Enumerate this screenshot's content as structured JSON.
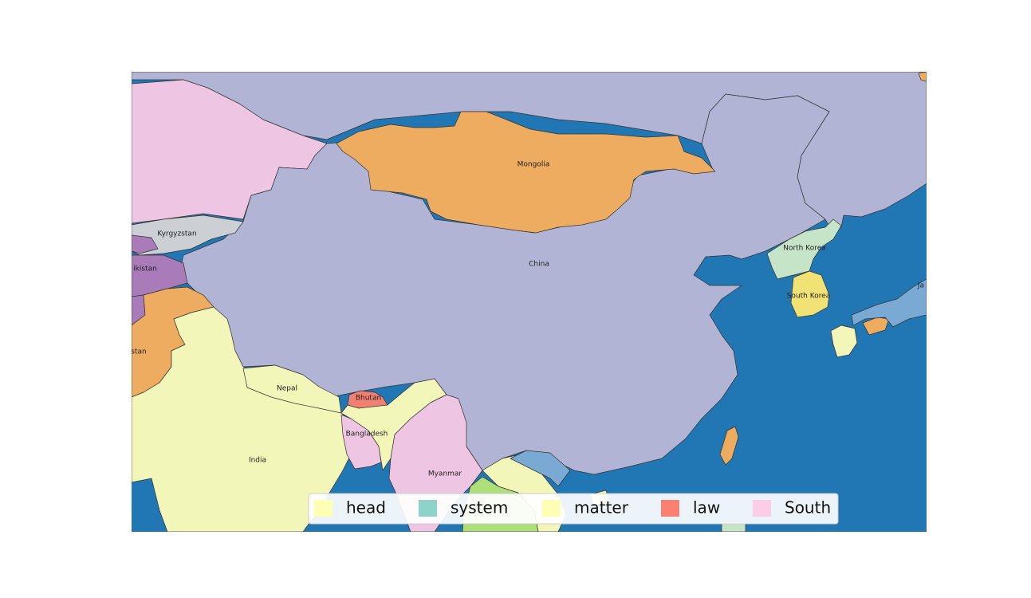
{
  "colors": {
    "sea": "#2077b4",
    "china": "#b2b4d6",
    "mongolia": "#eeac60",
    "kazakhstan": "#eec5e2",
    "kyrgyzstan": "#ccd0d5",
    "tajikistan": "#a97bb9",
    "afghanistan": "#eeac60",
    "india": "#f2f6b8",
    "nepal": "#f2f6b8",
    "bhutan": "#f28072",
    "bangladesh": "#eec5e2",
    "myanmar": "#eec5e2",
    "northeast_india": "#f2f6b8",
    "laos": "#ade07a",
    "vietnam": "#f2f6b8",
    "guangxi_neighbor": "#7aaad4",
    "north_korea": "#c5e4c8",
    "south_korea": "#f0e274",
    "japan_kyushu": "#f2f6b8",
    "japan_shikoku": "#eeac60",
    "japan_honshu": "#7aaad4",
    "taiwan": "#eeac60",
    "russia": "#b2b4d6"
  },
  "labels": {
    "mongolia": "Mongolia",
    "china": "China",
    "kyrgyzstan": "Kyrgyzstan",
    "tajikistan": "ikistan",
    "afghanistan": "stan",
    "india": "India",
    "nepal": "Nepal",
    "bhutan": "Bhutan",
    "bangladesh": "Bangladesh",
    "myanmar": "Myanmar",
    "north_korea": "North Korea",
    "south_korea": "South Korea",
    "japan": "Ja"
  },
  "legend": [
    {
      "label": "head",
      "color": "#ffffb3"
    },
    {
      "label": "system",
      "color": "#8dd3c7"
    },
    {
      "label": "matter",
      "color": "#ffffb3"
    },
    {
      "label": "law",
      "color": "#fb8072"
    },
    {
      "label": "South",
      "color": "#fccde5"
    }
  ]
}
